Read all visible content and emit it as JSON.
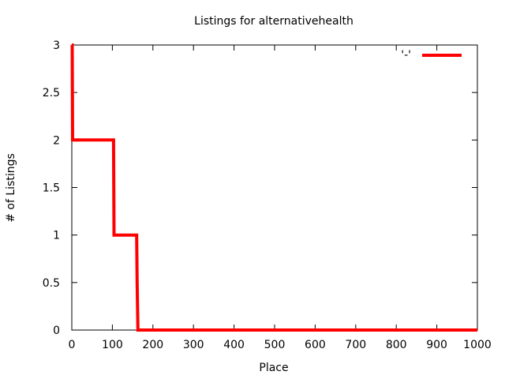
{
  "chart_data": {
    "type": "line",
    "title": "Listings for alternativehealth",
    "xlabel": "Place",
    "ylabel": "# of Listings",
    "xlim": [
      0,
      1000
    ],
    "ylim": [
      0,
      3
    ],
    "x_ticks": [
      0,
      100,
      200,
      300,
      400,
      500,
      600,
      700,
      800,
      900,
      1000
    ],
    "y_ticks": [
      0,
      0.5,
      1,
      1.5,
      2,
      2.5,
      3
    ],
    "x_tick_labels": [
      "0",
      "100",
      "200",
      "300",
      "400",
      "500",
      "600",
      "700",
      "800",
      "900",
      "1000"
    ],
    "y_tick_labels": [
      "0",
      "0.5",
      "1",
      "1.5",
      "2",
      "2.5",
      "3"
    ],
    "grid": false,
    "legend_position": "top-right",
    "series": [
      {
        "name": "'-'",
        "color": "#ff0000",
        "step": true,
        "x": [
          0,
          1,
          2,
          103,
          104,
          160,
          161,
          163,
          1000
        ],
        "y": [
          3,
          3,
          2,
          2,
          1,
          1,
          0.5,
          0,
          0
        ]
      }
    ]
  }
}
